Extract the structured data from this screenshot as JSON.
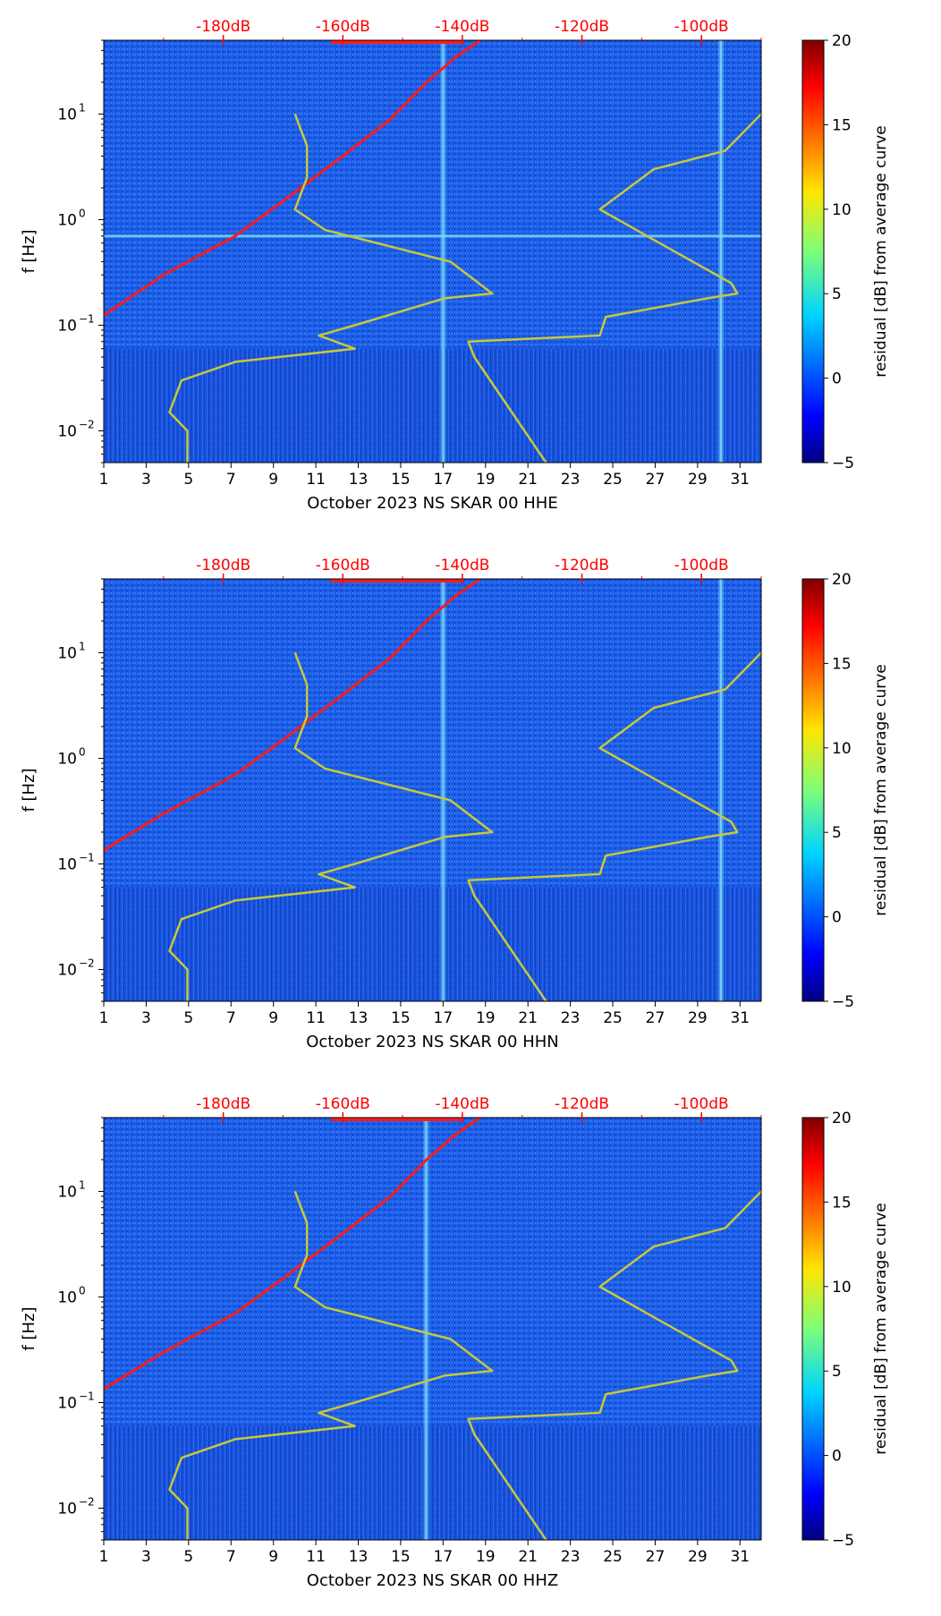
{
  "chart_data": [
    {
      "type": "heatmap",
      "title": "",
      "xlabel": "October 2023 NS SKAR 00 HHE",
      "ylabel": "f [Hz]",
      "x_ticks": [
        "1",
        "3",
        "5",
        "7",
        "9",
        "11",
        "13",
        "15",
        "17",
        "19",
        "21",
        "23",
        "25",
        "27",
        "29",
        "31"
      ],
      "y_ticks": [
        {
          "exp": "1",
          "label": "10"
        },
        {
          "exp": "0",
          "label": "10"
        },
        {
          "exp": "-1",
          "label": "10"
        },
        {
          "exp": "-2",
          "label": "10"
        }
      ],
      "top_axis_ticks": [
        "-180dB",
        "-160dB",
        "-140dB",
        "-120dB",
        "-100dB"
      ],
      "top_axis_color": "#ff0000",
      "colorbar": {
        "label": "residual [dB] from average curve",
        "ticks": [
          "20",
          "15",
          "10",
          "5",
          "0",
          "−5"
        ],
        "range": [
          -5,
          20
        ],
        "colormap": "jet"
      },
      "xlim": [
        1,
        32
      ],
      "ylim_hz": [
        0.005,
        50
      ],
      "db_range": [
        -200,
        -90
      ],
      "series": [
        {
          "color": "#ff1a1a",
          "points": [
            [
              -205,
              0.08
            ],
            [
              -190,
              0.3
            ],
            [
              -178,
              0.7
            ],
            [
              -170,
              1.5
            ],
            [
              -160,
              4
            ],
            [
              -152,
              9
            ],
            [
              -146,
              20
            ],
            [
              -141,
              35
            ],
            [
              -137,
              50
            ]
          ]
        },
        {
          "color": "#c8c83a",
          "points": [
            [
              -168,
              10
            ],
            [
              -166,
              5
            ],
            [
              -166,
              2.5
            ],
            [
              -168,
              1.25
            ],
            [
              -163,
              0.8
            ],
            [
              -142,
              0.4
            ],
            [
              -135,
              0.2
            ],
            [
              -143,
              0.18
            ],
            [
              -158,
              0.1
            ],
            [
              -164,
              0.08
            ],
            [
              -158,
              0.06
            ],
            [
              -178,
              0.045
            ],
            [
              -187,
              0.03
            ],
            [
              -189,
              0.015
            ],
            [
              -186,
              0.01
            ],
            [
              -186,
              0.005
            ]
          ]
        },
        {
          "color": "#c8c83a",
          "points": [
            [
              -90,
              10
            ],
            [
              -96,
              4.5
            ],
            [
              -108,
              3
            ],
            [
              -117,
              1.25
            ],
            [
              -107,
              0.6
            ],
            [
              -95,
              0.25
            ],
            [
              -94,
              0.2
            ],
            [
              -99,
              0.18
            ],
            [
              -116,
              0.12
            ],
            [
              -117,
              0.08
            ],
            [
              -139,
              0.07
            ],
            [
              -138,
              0.05
            ],
            [
              -126,
              0.005
            ]
          ]
        }
      ],
      "features": {
        "vertical_lines_day": [
          17,
          30.1
        ],
        "horizontal_line_hz": 0.7
      }
    },
    {
      "type": "heatmap",
      "title": "",
      "xlabel": "October 2023 NS SKAR 00 HHN",
      "ylabel": "f [Hz]",
      "x_ticks": [
        "1",
        "3",
        "5",
        "7",
        "9",
        "11",
        "13",
        "15",
        "17",
        "19",
        "21",
        "23",
        "25",
        "27",
        "29",
        "31"
      ],
      "y_ticks": [
        {
          "exp": "1",
          "label": "10"
        },
        {
          "exp": "0",
          "label": "10"
        },
        {
          "exp": "-1",
          "label": "10"
        },
        {
          "exp": "-2",
          "label": "10"
        }
      ],
      "top_axis_ticks": [
        "-180dB",
        "-160dB",
        "-140dB",
        "-120dB",
        "-100dB"
      ],
      "top_axis_color": "#ff0000",
      "colorbar": {
        "label": "residual [dB] from average curve",
        "ticks": [
          "20",
          "15",
          "10",
          "5",
          "0",
          "−5"
        ],
        "range": [
          -5,
          20
        ],
        "colormap": "jet"
      },
      "xlim": [
        1,
        32
      ],
      "ylim_hz": [
        0.005,
        50
      ],
      "db_range": [
        -200,
        -90
      ],
      "series": [
        {
          "color": "#ff1a1a",
          "points": [
            [
              -205,
              0.09
            ],
            [
              -190,
              0.3
            ],
            [
              -178,
              0.7
            ],
            [
              -170,
              1.5
            ],
            [
              -160,
              4
            ],
            [
              -152,
              9
            ],
            [
              -146,
              20
            ],
            [
              -141,
              35
            ],
            [
              -137,
              50
            ]
          ]
        },
        {
          "color": "#c8c83a",
          "points": [
            [
              -168,
              10
            ],
            [
              -166,
              5
            ],
            [
              -166,
              2.5
            ],
            [
              -168,
              1.25
            ],
            [
              -163,
              0.8
            ],
            [
              -142,
              0.4
            ],
            [
              -135,
              0.2
            ],
            [
              -143,
              0.18
            ],
            [
              -158,
              0.1
            ],
            [
              -164,
              0.08
            ],
            [
              -158,
              0.06
            ],
            [
              -178,
              0.045
            ],
            [
              -187,
              0.03
            ],
            [
              -189,
              0.015
            ],
            [
              -186,
              0.01
            ],
            [
              -186,
              0.005
            ]
          ]
        },
        {
          "color": "#c8c83a",
          "points": [
            [
              -90,
              10
            ],
            [
              -96,
              4.5
            ],
            [
              -108,
              3
            ],
            [
              -117,
              1.25
            ],
            [
              -107,
              0.6
            ],
            [
              -95,
              0.25
            ],
            [
              -94,
              0.2
            ],
            [
              -99,
              0.18
            ],
            [
              -116,
              0.12
            ],
            [
              -117,
              0.08
            ],
            [
              -139,
              0.07
            ],
            [
              -138,
              0.05
            ],
            [
              -126,
              0.005
            ]
          ]
        }
      ],
      "features": {
        "vertical_lines_day": [
          17,
          30.1
        ],
        "horizontal_line_hz": null
      }
    },
    {
      "type": "heatmap",
      "title": "",
      "xlabel": "October 2023 NS SKAR 00 HHZ",
      "ylabel": "f [Hz]",
      "x_ticks": [
        "1",
        "3",
        "5",
        "7",
        "9",
        "11",
        "13",
        "15",
        "17",
        "19",
        "21",
        "23",
        "25",
        "27",
        "29",
        "31"
      ],
      "y_ticks": [
        {
          "exp": "1",
          "label": "10"
        },
        {
          "exp": "0",
          "label": "10"
        },
        {
          "exp": "-1",
          "label": "10"
        },
        {
          "exp": "-2",
          "label": "10"
        }
      ],
      "top_axis_ticks": [
        "-180dB",
        "-160dB",
        "-140dB",
        "-120dB",
        "-100dB"
      ],
      "top_axis_color": "#ff0000",
      "colorbar": {
        "label": "residual [dB] from average curve",
        "ticks": [
          "20",
          "15",
          "10",
          "5",
          "0",
          "−5"
        ],
        "range": [
          -5,
          20
        ],
        "colormap": "jet"
      },
      "xlim": [
        1,
        32
      ],
      "ylim_hz": [
        0.005,
        50
      ],
      "db_range": [
        -200,
        -90
      ],
      "series": [
        {
          "color": "#ff1a1a",
          "points": [
            [
              -205,
              0.09
            ],
            [
              -190,
              0.3
            ],
            [
              -178,
              0.7
            ],
            [
              -170,
              1.5
            ],
            [
              -160,
              4
            ],
            [
              -152,
              9
            ],
            [
              -146,
              20
            ],
            [
              -141,
              35
            ],
            [
              -137,
              50
            ]
          ]
        },
        {
          "color": "#c8c83a",
          "points": [
            [
              -168,
              10
            ],
            [
              -166,
              5
            ],
            [
              -166,
              2.5
            ],
            [
              -168,
              1.25
            ],
            [
              -163,
              0.8
            ],
            [
              -142,
              0.4
            ],
            [
              -135,
              0.2
            ],
            [
              -143,
              0.18
            ],
            [
              -158,
              0.1
            ],
            [
              -164,
              0.08
            ],
            [
              -158,
              0.06
            ],
            [
              -178,
              0.045
            ],
            [
              -187,
              0.03
            ],
            [
              -189,
              0.015
            ],
            [
              -186,
              0.01
            ],
            [
              -186,
              0.005
            ]
          ]
        },
        {
          "color": "#c8c83a",
          "points": [
            [
              -90,
              10
            ],
            [
              -96,
              4.5
            ],
            [
              -108,
              3
            ],
            [
              -117,
              1.25
            ],
            [
              -107,
              0.6
            ],
            [
              -95,
              0.25
            ],
            [
              -94,
              0.2
            ],
            [
              -99,
              0.18
            ],
            [
              -116,
              0.12
            ],
            [
              -117,
              0.08
            ],
            [
              -139,
              0.07
            ],
            [
              -138,
              0.05
            ],
            [
              -126,
              0.005
            ]
          ]
        }
      ],
      "features": {
        "vertical_lines_day": [
          16.2
        ],
        "horizontal_line_hz": null
      }
    }
  ]
}
